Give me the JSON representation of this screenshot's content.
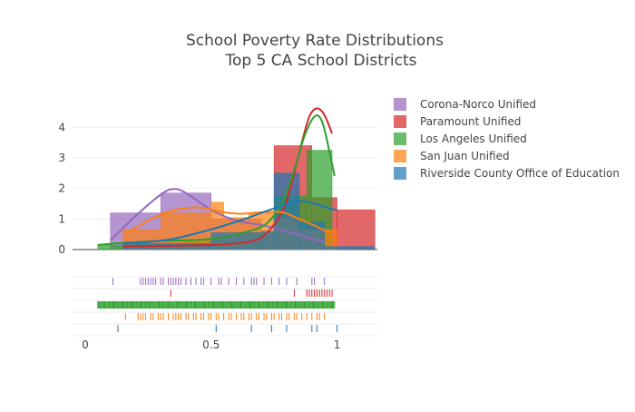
{
  "chart_data": {
    "type": "histogram",
    "title_line1": "School Poverty Rate Distributions",
    "title_line2": "Top 5 CA School Districts",
    "xlabel": "",
    "ylabel": "",
    "xlim": [
      -0.05,
      1.16
    ],
    "ylim": [
      0,
      4.9
    ],
    "x_ticks": [
      0,
      0.5,
      1
    ],
    "x_tick_labels": [
      "0",
      "0.5",
      "1"
    ],
    "y_ticks": [
      0,
      1,
      2,
      3,
      4
    ],
    "y_tick_labels": [
      "0",
      "1",
      "2",
      "3",
      "4"
    ],
    "legend_position": "right",
    "series": [
      {
        "name": "Corona-Norco Unified",
        "color": "#9467bd",
        "hist": [
          [
            0.1,
            0.3,
            1.2
          ],
          [
            0.3,
            0.5,
            1.85
          ],
          [
            0.5,
            0.7,
            1.0
          ],
          [
            0.7,
            0.9,
            0.45
          ]
        ],
        "curve": [
          [
            0.1,
            0.3
          ],
          [
            0.2,
            1.1
          ],
          [
            0.3,
            1.8
          ],
          [
            0.35,
            1.98
          ],
          [
            0.4,
            1.85
          ],
          [
            0.5,
            1.3
          ],
          [
            0.6,
            0.95
          ],
          [
            0.7,
            0.8
          ],
          [
            0.8,
            0.6
          ],
          [
            0.9,
            0.35
          ],
          [
            0.95,
            0.25
          ]
        ],
        "rug": [
          0.11,
          0.22,
          0.23,
          0.24,
          0.25,
          0.26,
          0.27,
          0.28,
          0.3,
          0.31,
          0.33,
          0.34,
          0.35,
          0.36,
          0.37,
          0.38,
          0.4,
          0.42,
          0.44,
          0.46,
          0.47,
          0.5,
          0.53,
          0.54,
          0.57,
          0.6,
          0.63,
          0.66,
          0.67,
          0.68,
          0.71,
          0.74,
          0.77,
          0.8,
          0.84,
          0.9,
          0.91,
          0.95
        ]
      },
      {
        "name": "Paramount Unified",
        "color": "#d62728",
        "hist": [
          [
            0.75,
            0.9,
            3.4
          ],
          [
            0.9,
            1.0,
            1.7
          ],
          [
            1.0,
            1.15,
            1.3
          ]
        ],
        "curve": [
          [
            0.15,
            0.1
          ],
          [
            0.3,
            0.12
          ],
          [
            0.5,
            0.15
          ],
          [
            0.6,
            0.2
          ],
          [
            0.7,
            0.4
          ],
          [
            0.78,
            1.2
          ],
          [
            0.82,
            2.2
          ],
          [
            0.86,
            3.5
          ],
          [
            0.89,
            4.35
          ],
          [
            0.92,
            4.62
          ],
          [
            0.95,
            4.4
          ],
          [
            0.98,
            3.8
          ]
        ],
        "rug": [
          0.34,
          0.83,
          0.88,
          0.89,
          0.9,
          0.91,
          0.92,
          0.93,
          0.94,
          0.95,
          0.96,
          0.97,
          0.98
        ]
      },
      {
        "name": "Los Angeles Unified",
        "color": "#2ca02c",
        "hist": [
          [
            0.05,
            0.2,
            0.15
          ],
          [
            0.2,
            0.4,
            0.2
          ],
          [
            0.4,
            0.6,
            0.3
          ],
          [
            0.6,
            0.75,
            0.55
          ],
          [
            0.75,
            0.88,
            1.75
          ],
          [
            0.88,
            0.98,
            3.25
          ]
        ],
        "curve": [
          [
            0.05,
            0.15
          ],
          [
            0.15,
            0.22
          ],
          [
            0.3,
            0.28
          ],
          [
            0.45,
            0.32
          ],
          [
            0.55,
            0.4
          ],
          [
            0.65,
            0.6
          ],
          [
            0.72,
            0.85
          ],
          [
            0.78,
            1.5
          ],
          [
            0.83,
            2.6
          ],
          [
            0.87,
            3.7
          ],
          [
            0.91,
            4.35
          ],
          [
            0.94,
            4.2
          ],
          [
            0.97,
            3.2
          ],
          [
            0.99,
            2.4
          ]
        ],
        "rug_dense": [
          0.05,
          0.99
        ]
      },
      {
        "name": "San Juan Unified",
        "color": "#ff7f0e",
        "hist": [
          [
            0.15,
            0.3,
            0.65
          ],
          [
            0.3,
            0.5,
            1.2
          ],
          [
            0.5,
            0.55,
            1.55
          ],
          [
            0.55,
            0.65,
            1.05
          ],
          [
            0.65,
            0.75,
            1.2
          ],
          [
            0.75,
            0.85,
            1.05
          ],
          [
            0.85,
            1.0,
            0.65
          ]
        ],
        "curve": [
          [
            0.18,
            0.6
          ],
          [
            0.25,
            0.95
          ],
          [
            0.35,
            1.28
          ],
          [
            0.45,
            1.38
          ],
          [
            0.55,
            1.22
          ],
          [
            0.62,
            1.17
          ],
          [
            0.7,
            1.22
          ],
          [
            0.78,
            1.22
          ],
          [
            0.85,
            1.0
          ],
          [
            0.92,
            0.75
          ],
          [
            0.97,
            0.55
          ]
        ],
        "rug": [
          0.16,
          0.21,
          0.22,
          0.23,
          0.24,
          0.26,
          0.27,
          0.29,
          0.3,
          0.31,
          0.33,
          0.35,
          0.36,
          0.37,
          0.38,
          0.4,
          0.41,
          0.43,
          0.44,
          0.46,
          0.47,
          0.49,
          0.5,
          0.52,
          0.53,
          0.55,
          0.57,
          0.58,
          0.6,
          0.62,
          0.63,
          0.65,
          0.66,
          0.68,
          0.69,
          0.71,
          0.72,
          0.74,
          0.75,
          0.77,
          0.78,
          0.8,
          0.81,
          0.83,
          0.84,
          0.86,
          0.88,
          0.9,
          0.92,
          0.93,
          0.95
        ]
      },
      {
        "name": "Riverside County Office of Education",
        "color": "#1f77b4",
        "hist": [
          [
            0.15,
            0.5,
            0.2
          ],
          [
            0.5,
            0.7,
            0.55
          ],
          [
            0.7,
            0.75,
            0.6
          ],
          [
            0.75,
            0.85,
            2.5
          ],
          [
            0.85,
            0.95,
            0.9
          ],
          [
            0.95,
            1.15,
            0.1
          ]
        ],
        "curve": [
          [
            0.15,
            0.2
          ],
          [
            0.25,
            0.25
          ],
          [
            0.35,
            0.35
          ],
          [
            0.45,
            0.55
          ],
          [
            0.55,
            0.78
          ],
          [
            0.65,
            1.05
          ],
          [
            0.75,
            1.35
          ],
          [
            0.85,
            1.58
          ],
          [
            0.9,
            1.52
          ],
          [
            0.95,
            1.4
          ],
          [
            1.0,
            1.28
          ]
        ],
        "rug": [
          0.13,
          0.52,
          0.66,
          0.74,
          0.8,
          0.9,
          0.92,
          1.0
        ]
      }
    ]
  }
}
